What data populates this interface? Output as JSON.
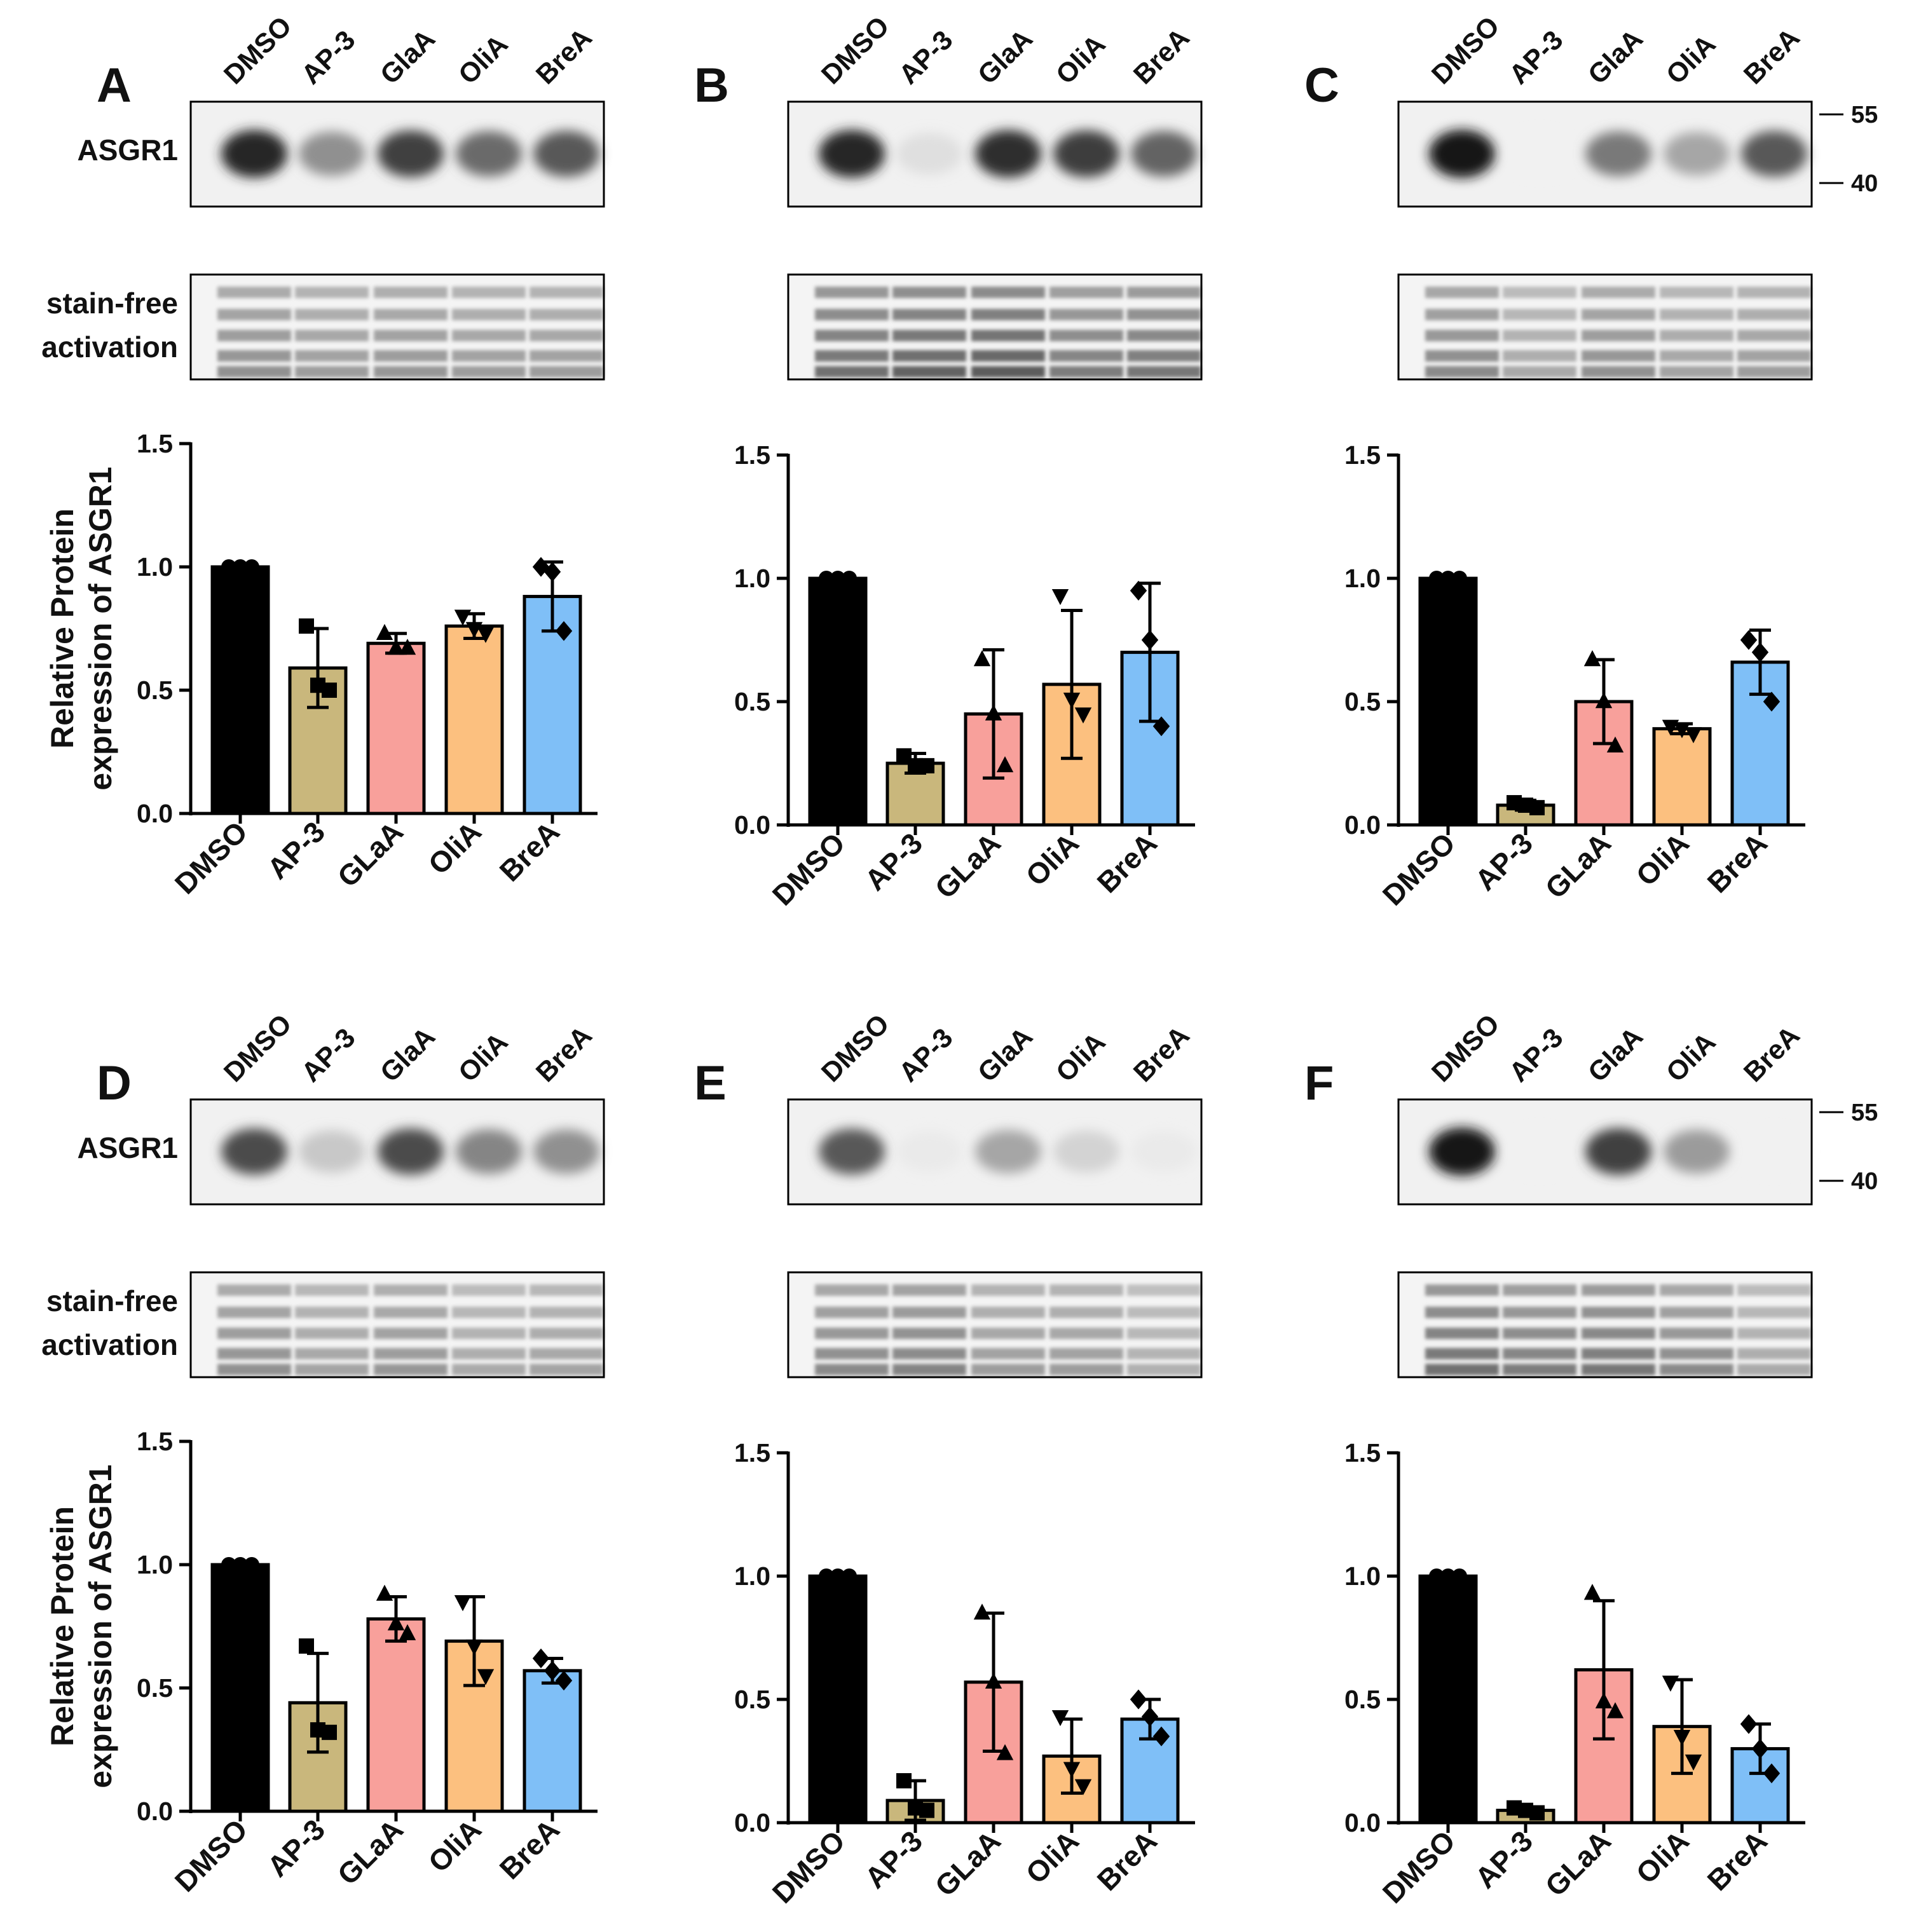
{
  "lanes": [
    "DMSO",
    "AP-3",
    "GlaA",
    "OliA",
    "BreA"
  ],
  "row_labels": {
    "blot_target": "ASGR1",
    "loading_line1": "stain-free",
    "loading_line2": "activation"
  },
  "mw_markers": [
    "55",
    "40"
  ],
  "colors": {
    "DMSO": "#000000",
    "AP-3": "#c9b77c",
    "GLaA": "#f8a09b",
    "OliA": "#fcc07f",
    "BreA": "#7fbff7"
  },
  "panels": [
    {
      "label": "A",
      "blot": {
        "band_intensity": [
          0.92,
          0.45,
          0.8,
          0.62,
          0.7
        ],
        "loading_intensity": [
          0.55,
          0.45,
          0.5,
          0.45,
          0.45
        ]
      }
    },
    {
      "label": "B",
      "blot": {
        "band_intensity": [
          0.92,
          0.1,
          0.88,
          0.82,
          0.65
        ],
        "loading_intensity": [
          0.8,
          0.9,
          0.95,
          0.7,
          0.75
        ]
      }
    },
    {
      "label": "C",
      "blot": {
        "band_intensity": [
          0.98,
          0.02,
          0.55,
          0.35,
          0.7
        ],
        "loading_intensity": [
          0.6,
          0.35,
          0.55,
          0.4,
          0.45
        ]
      }
    },
    {
      "label": "D",
      "blot": {
        "band_intensity": [
          0.75,
          0.2,
          0.75,
          0.5,
          0.45
        ],
        "loading_intensity": [
          0.55,
          0.4,
          0.5,
          0.35,
          0.4
        ]
      }
    },
    {
      "label": "E",
      "blot": {
        "band_intensity": [
          0.7,
          0.05,
          0.35,
          0.15,
          0.05
        ],
        "loading_intensity": [
          0.6,
          0.65,
          0.45,
          0.45,
          0.3
        ]
      }
    },
    {
      "label": "F",
      "blot": {
        "band_intensity": [
          0.98,
          0.02,
          0.8,
          0.4,
          0.02
        ],
        "loading_intensity": [
          0.8,
          0.7,
          0.75,
          0.6,
          0.35
        ]
      }
    }
  ],
  "chart_data": [
    {
      "panel": "A",
      "type": "bar",
      "ylabel": "Relative Protein expression of ASGR1",
      "ylim": [
        0,
        1.5
      ],
      "yticks": [
        "0.0",
        "0.5",
        "1.0",
        "1.5"
      ],
      "categories": [
        "DMSO",
        "AP-3",
        "GLaA",
        "OliA",
        "BreA"
      ],
      "values": [
        1.0,
        0.59,
        0.69,
        0.76,
        0.88
      ],
      "errors": [
        0.0,
        0.16,
        0.04,
        0.05,
        0.14
      ],
      "points": [
        [
          1.0,
          1.0,
          1.0
        ],
        [
          0.76,
          0.52,
          0.5
        ],
        [
          0.73,
          0.67,
          0.67
        ],
        [
          0.8,
          0.75,
          0.73
        ],
        [
          1.0,
          0.98,
          0.74
        ]
      ]
    },
    {
      "panel": "B",
      "type": "bar",
      "ylabel": "",
      "ylim": [
        0,
        1.5
      ],
      "yticks": [
        "0.0",
        "0.5",
        "1.0",
        "1.5"
      ],
      "categories": [
        "DMSO",
        "AP-3",
        "GLaA",
        "OliA",
        "BreA"
      ],
      "values": [
        1.0,
        0.25,
        0.45,
        0.57,
        0.7
      ],
      "errors": [
        0.0,
        0.04,
        0.26,
        0.3,
        0.28
      ],
      "points": [
        [
          1.0,
          1.0,
          1.0
        ],
        [
          0.28,
          0.24,
          0.24
        ],
        [
          0.67,
          0.45,
          0.24
        ],
        [
          0.93,
          0.51,
          0.45
        ],
        [
          0.95,
          0.75,
          0.4
        ]
      ]
    },
    {
      "panel": "C",
      "type": "bar",
      "ylabel": "",
      "ylim": [
        0,
        1.5
      ],
      "yticks": [
        "0.0",
        "0.5",
        "1.0",
        "1.5"
      ],
      "categories": [
        "DMSO",
        "AP-3",
        "GLaA",
        "OliA",
        "BreA"
      ],
      "values": [
        1.0,
        0.08,
        0.5,
        0.39,
        0.66
      ],
      "errors": [
        0.0,
        0.02,
        0.17,
        0.02,
        0.13
      ],
      "points": [
        [
          1.0,
          1.0,
          1.0
        ],
        [
          0.09,
          0.08,
          0.07
        ],
        [
          0.67,
          0.5,
          0.32
        ],
        [
          0.4,
          0.39,
          0.37
        ],
        [
          0.75,
          0.7,
          0.5
        ]
      ]
    },
    {
      "panel": "D",
      "type": "bar",
      "ylabel": "Relative Protein expression of ASGR1",
      "ylim": [
        0,
        1.5
      ],
      "yticks": [
        "0.0",
        "0.5",
        "1.0",
        "1.5"
      ],
      "categories": [
        "DMSO",
        "AP-3",
        "GLaA",
        "OliA",
        "BreA"
      ],
      "values": [
        1.0,
        0.44,
        0.78,
        0.69,
        0.57
      ],
      "errors": [
        0.0,
        0.2,
        0.09,
        0.18,
        0.05
      ],
      "points": [
        [
          1.0,
          1.0,
          1.0
        ],
        [
          0.67,
          0.33,
          0.32
        ],
        [
          0.88,
          0.76,
          0.72
        ],
        [
          0.85,
          0.67,
          0.55
        ],
        [
          0.62,
          0.57,
          0.53
        ]
      ]
    },
    {
      "panel": "E",
      "type": "bar",
      "ylabel": "",
      "ylim": [
        0,
        1.5
      ],
      "yticks": [
        "0.0",
        "0.5",
        "1.0",
        "1.5"
      ],
      "categories": [
        "DMSO",
        "AP-3",
        "GLaA",
        "OliA",
        "BreA"
      ],
      "values": [
        1.0,
        0.09,
        0.57,
        0.27,
        0.42
      ],
      "errors": [
        0.0,
        0.08,
        0.28,
        0.15,
        0.08
      ],
      "points": [
        [
          1.0,
          1.0,
          1.0
        ],
        [
          0.17,
          0.06,
          0.05
        ],
        [
          0.85,
          0.57,
          0.28
        ],
        [
          0.43,
          0.22,
          0.15
        ],
        [
          0.5,
          0.43,
          0.35
        ]
      ]
    },
    {
      "panel": "F",
      "type": "bar",
      "ylabel": "",
      "ylim": [
        0,
        1.5
      ],
      "yticks": [
        "0.0",
        "0.5",
        "1.0",
        "1.5"
      ],
      "categories": [
        "DMSO",
        "AP-3",
        "GLaA",
        "OliA",
        "BreA"
      ],
      "values": [
        1.0,
        0.05,
        0.62,
        0.39,
        0.3
      ],
      "errors": [
        0.0,
        0.01,
        0.28,
        0.19,
        0.1
      ],
      "points": [
        [
          1.0,
          1.0,
          1.0
        ],
        [
          0.06,
          0.05,
          0.04
        ],
        [
          0.93,
          0.49,
          0.45
        ],
        [
          0.57,
          0.35,
          0.25
        ],
        [
          0.4,
          0.3,
          0.2
        ]
      ]
    }
  ]
}
